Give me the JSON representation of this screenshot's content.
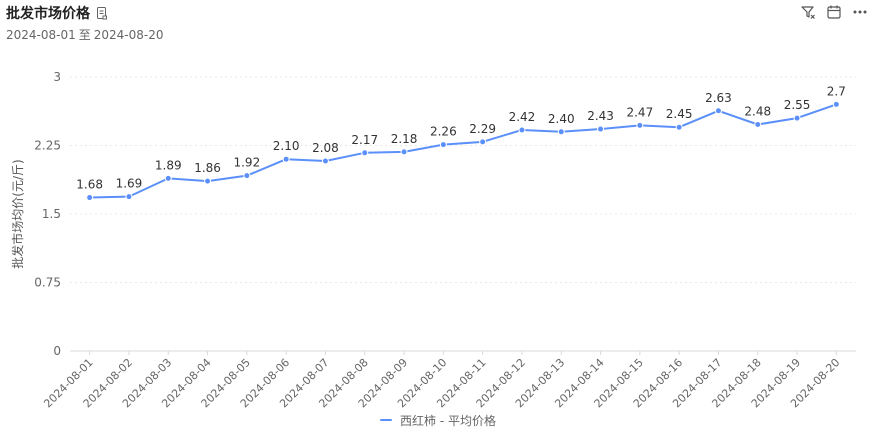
{
  "header": {
    "title": "批发市场价格",
    "date_start": "2024-08-01",
    "date_sep": "至",
    "date_end": "2024-08-20",
    "icons": [
      "document-icon",
      "filter-icon",
      "calendar-icon",
      "more-icon"
    ]
  },
  "chart_data": {
    "type": "line",
    "ylabel": "批发市场均价(元/斤)",
    "ylim": [
      0,
      3
    ],
    "yticks": [
      "0",
      "0.75",
      "1.5",
      "2.25",
      "3"
    ],
    "ytick_values": [
      0,
      0.75,
      1.5,
      2.25,
      3
    ],
    "categories": [
      "2024-08-01",
      "2024-08-02",
      "2024-08-03",
      "2024-08-04",
      "2024-08-05",
      "2024-08-06",
      "2024-08-07",
      "2024-08-08",
      "2024-08-09",
      "2024-08-10",
      "2024-08-11",
      "2024-08-12",
      "2024-08-13",
      "2024-08-14",
      "2024-08-15",
      "2024-08-16",
      "2024-08-17",
      "2024-08-18",
      "2024-08-19",
      "2024-08-20"
    ],
    "series": [
      {
        "name": "西红柿 - 平均价格",
        "values": [
          1.68,
          1.69,
          1.89,
          1.86,
          1.92,
          2.1,
          2.08,
          2.17,
          2.18,
          2.26,
          2.29,
          2.42,
          2.4,
          2.43,
          2.47,
          2.45,
          2.63,
          2.48,
          2.55,
          2.7
        ],
        "labels": [
          "1.68",
          "1.69",
          "1.89",
          "1.86",
          "1.92",
          "2.10",
          "2.08",
          "2.17",
          "2.18",
          "2.26",
          "2.29",
          "2.42",
          "2.40",
          "2.43",
          "2.47",
          "2.45",
          "2.63",
          "2.48",
          "2.55",
          "2.7"
        ]
      }
    ],
    "grid": "horizontal-dotted",
    "legend_position": "bottom",
    "colors": {
      "line": "#5b8ff9",
      "grid": "#e8e8e8",
      "axis": "#d9d9d9",
      "tick_text": "#666666",
      "label_text": "#333333"
    }
  }
}
